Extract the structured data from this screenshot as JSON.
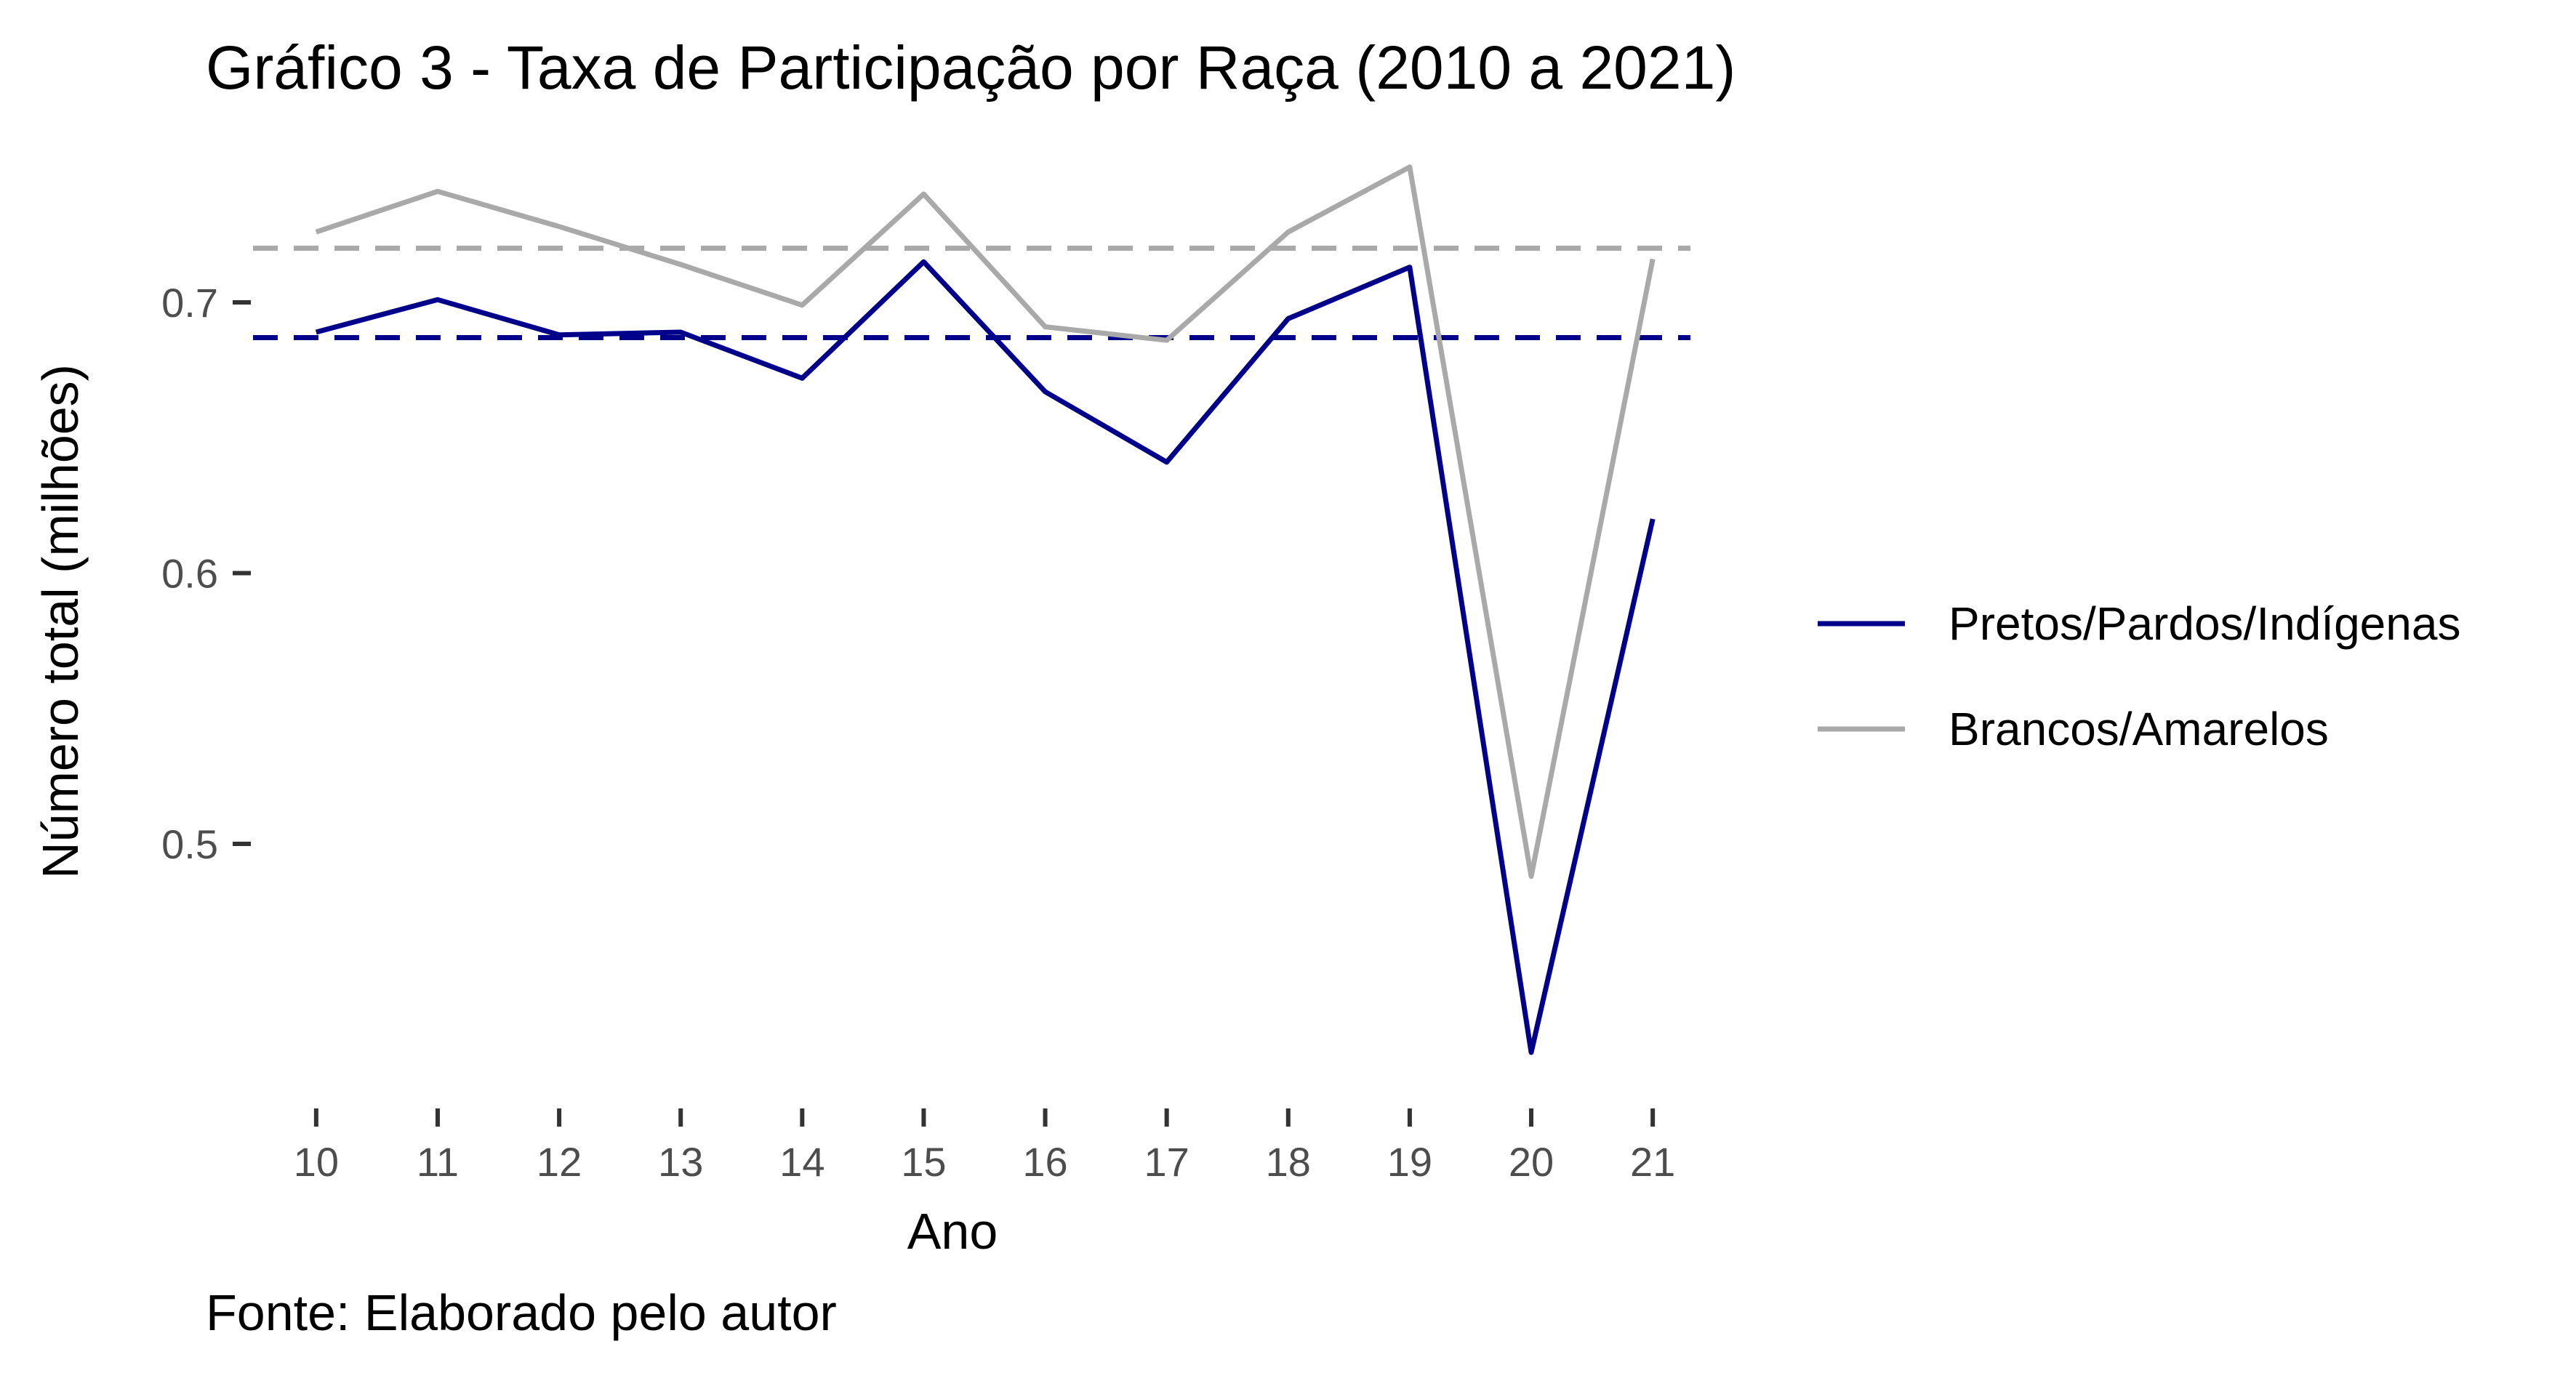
{
  "chart_data": {
    "type": "line",
    "title": "Gráfico 3 - Taxa de Participação por Raça (2010 a 2021)",
    "caption": "Fonte: Elaborado pelo autor",
    "xlabel": "Ano",
    "ylabel": "Número total (milhões)",
    "x": [
      10,
      11,
      12,
      13,
      14,
      15,
      16,
      17,
      18,
      19,
      20,
      21
    ],
    "x_tick_labels": [
      "10",
      "11",
      "12",
      "13",
      "14",
      "15",
      "16",
      "17",
      "18",
      "19",
      "20",
      "21"
    ],
    "y_ticks": [
      0.5,
      0.6,
      0.7
    ],
    "y_tick_labels": [
      "0.5",
      "0.6",
      "0.7"
    ],
    "ylim": [
      0.409,
      0.758
    ],
    "xlim": [
      9.6,
      21.4
    ],
    "grid": false,
    "legend_position": "right",
    "series": [
      {
        "name": "Pretos/Pardos/Indígenas",
        "color": "#00008B",
        "values": [
          0.689,
          0.701,
          0.688,
          0.689,
          0.672,
          0.715,
          0.667,
          0.641,
          0.694,
          0.713,
          0.423,
          0.62
        ],
        "reference_mean": 0.687
      },
      {
        "name": "Brancos/Amarelos",
        "color": "#A9A9A9",
        "values": [
          0.726,
          0.741,
          0.728,
          0.714,
          0.699,
          0.74,
          0.691,
          0.686,
          0.726,
          0.75,
          0.488,
          0.716
        ],
        "reference_mean": 0.72
      }
    ]
  }
}
